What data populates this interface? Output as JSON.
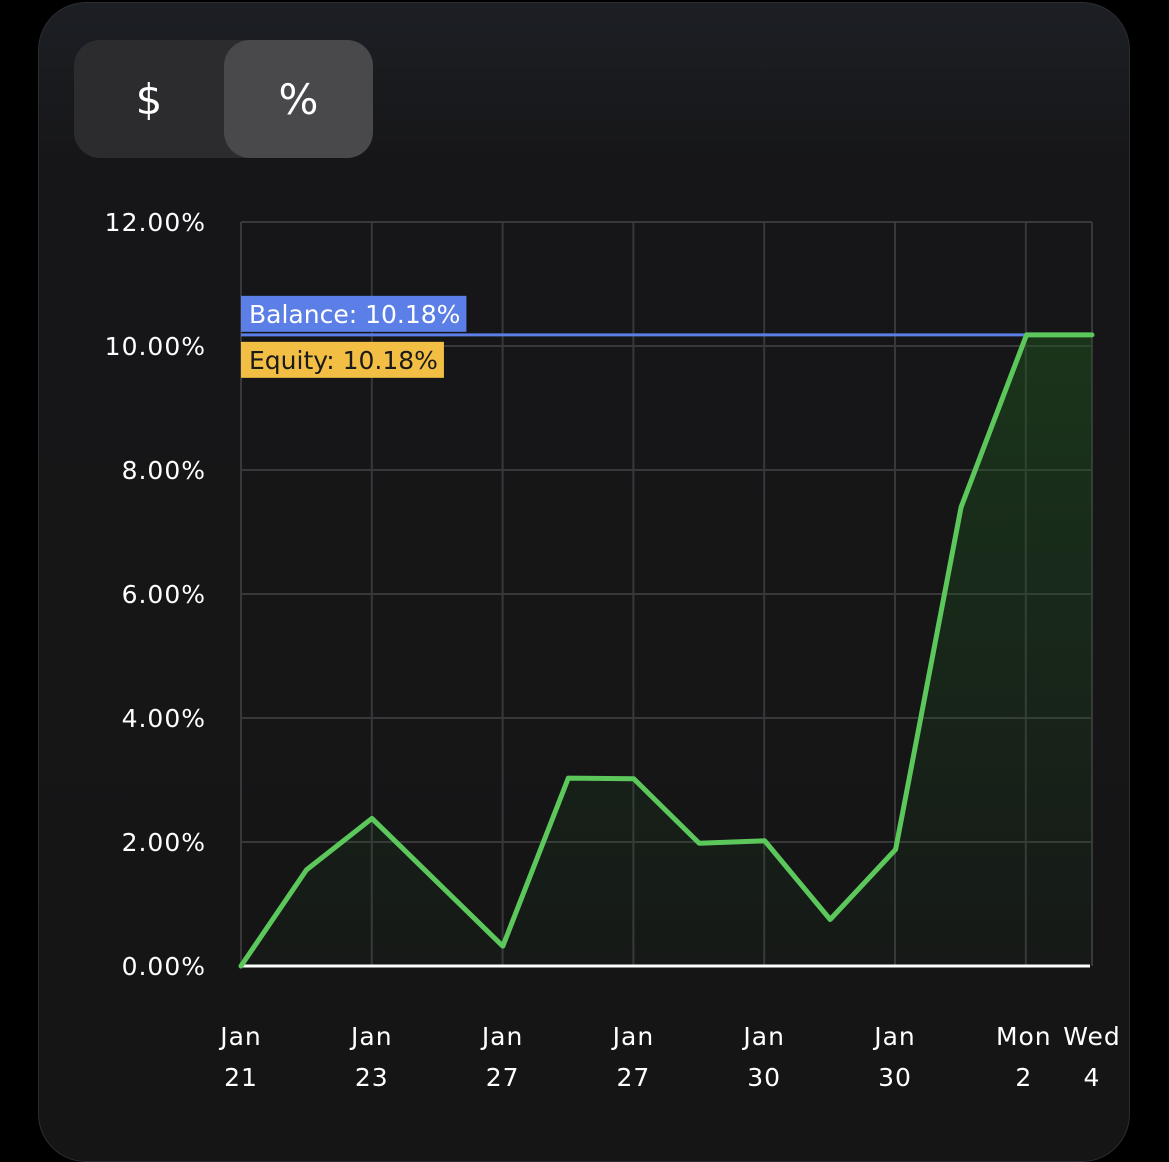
{
  "toggle": {
    "options": [
      {
        "label": "$",
        "active": false
      },
      {
        "label": "%",
        "active": true
      }
    ]
  },
  "chart_data": {
    "type": "line",
    "y_tick_labels": [
      "0.00%",
      "2.00%",
      "4.00%",
      "6.00%",
      "8.00%",
      "10.00%",
      "12.00%"
    ],
    "ylim": [
      0,
      12
    ],
    "x_tick_labels": [
      [
        "Jan",
        "21"
      ],
      [
        "Jan",
        "23"
      ],
      [
        "Jan",
        "27"
      ],
      [
        "Jan",
        "27"
      ],
      [
        "Jan",
        "30"
      ],
      [
        "Jan",
        "30"
      ],
      [
        "Mon",
        "2"
      ],
      [
        "Wed",
        "4"
      ]
    ],
    "series": [
      {
        "color": "#5cc85c",
        "values": [
          0.0,
          1.55,
          2.38,
          1.35,
          0.32,
          3.03,
          3.02,
          1.98,
          2.02,
          0.75,
          1.88,
          7.4,
          10.18,
          10.18
        ]
      }
    ],
    "reference_lines": [
      {
        "label": "Balance: 10.18%",
        "value": 10.18,
        "color": "#5b7fe6",
        "label_bg": "#5b7fe6",
        "label_color": "#ffffff"
      },
      {
        "label": "Equity: 10.18%",
        "value": 10.18,
        "color": "#f2bf44",
        "label_bg": "#f2bf44",
        "label_color": "#1a1a1a"
      }
    ],
    "grid": true,
    "colors": {
      "grid": "#38383b",
      "axis_text": "#ffffff",
      "baseline": "#ffffff",
      "line": "#5cc85c"
    }
  }
}
